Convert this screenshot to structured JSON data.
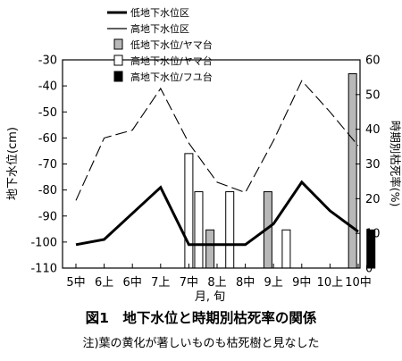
{
  "chart_data": {
    "type": "line",
    "categories": [
      "5中",
      "6上",
      "6中",
      "7上",
      "7中",
      "8上",
      "8中",
      "9上",
      "9中",
      "10上",
      "10中"
    ],
    "xlabel": "月, 旬",
    "ylabel_left": "地下水位(cm)",
    "ylabel_right": "時期別枯死率(%)",
    "y_left": {
      "range": [
        -110,
        -30
      ],
      "ticks": [
        -30,
        -40,
        -50,
        -60,
        -70,
        -80,
        -90,
        -100,
        -110
      ]
    },
    "y_right": {
      "range": [
        0,
        60
      ],
      "ticks": [
        0,
        10,
        20,
        30,
        40,
        50,
        60
      ]
    },
    "lines": [
      {
        "name": "低地下水位区",
        "style": "solid-thick",
        "x": [
          0,
          1,
          2,
          3,
          4,
          5,
          6,
          7,
          8,
          9,
          10
        ],
        "values": [
          -101,
          -99,
          -89,
          -79,
          -101,
          -101,
          -101,
          -93,
          -77,
          -88,
          -96
        ]
      },
      {
        "name": "高地下水位区",
        "style": "dashed",
        "x": [
          0,
          1,
          2,
          3,
          4,
          5,
          6,
          7,
          8,
          9,
          10
        ],
        "values": [
          -84,
          -60,
          -57,
          -41,
          -62,
          -77,
          -81,
          -61,
          -38,
          -50,
          -63
        ]
      }
    ],
    "bars": [
      {
        "name": "低地下水位/ヤマ台",
        "fill": "#b8b8b8",
        "stroke": "#000000",
        "points": [
          [
            4.75,
            11
          ],
          [
            6.8,
            22
          ],
          [
            9.8,
            56
          ]
        ]
      },
      {
        "name": "高地下水位/ヤマ台",
        "fill": "#ffffff",
        "stroke": "#000000",
        "points": [
          [
            4,
            33
          ],
          [
            4.35,
            22
          ],
          [
            5.45,
            22
          ],
          [
            7.45,
            11
          ]
        ]
      },
      {
        "name": "高地下水位/フユ台",
        "fill": "#000000",
        "stroke": "#000000",
        "points": [
          [
            10.45,
            11
          ]
        ]
      }
    ],
    "legend_position": "top-right"
  },
  "figure": {
    "title": "図1　地下水位と時期別枯死率の関係",
    "note": "注)葉の黄化が著しいものも枯死樹と見なした"
  }
}
